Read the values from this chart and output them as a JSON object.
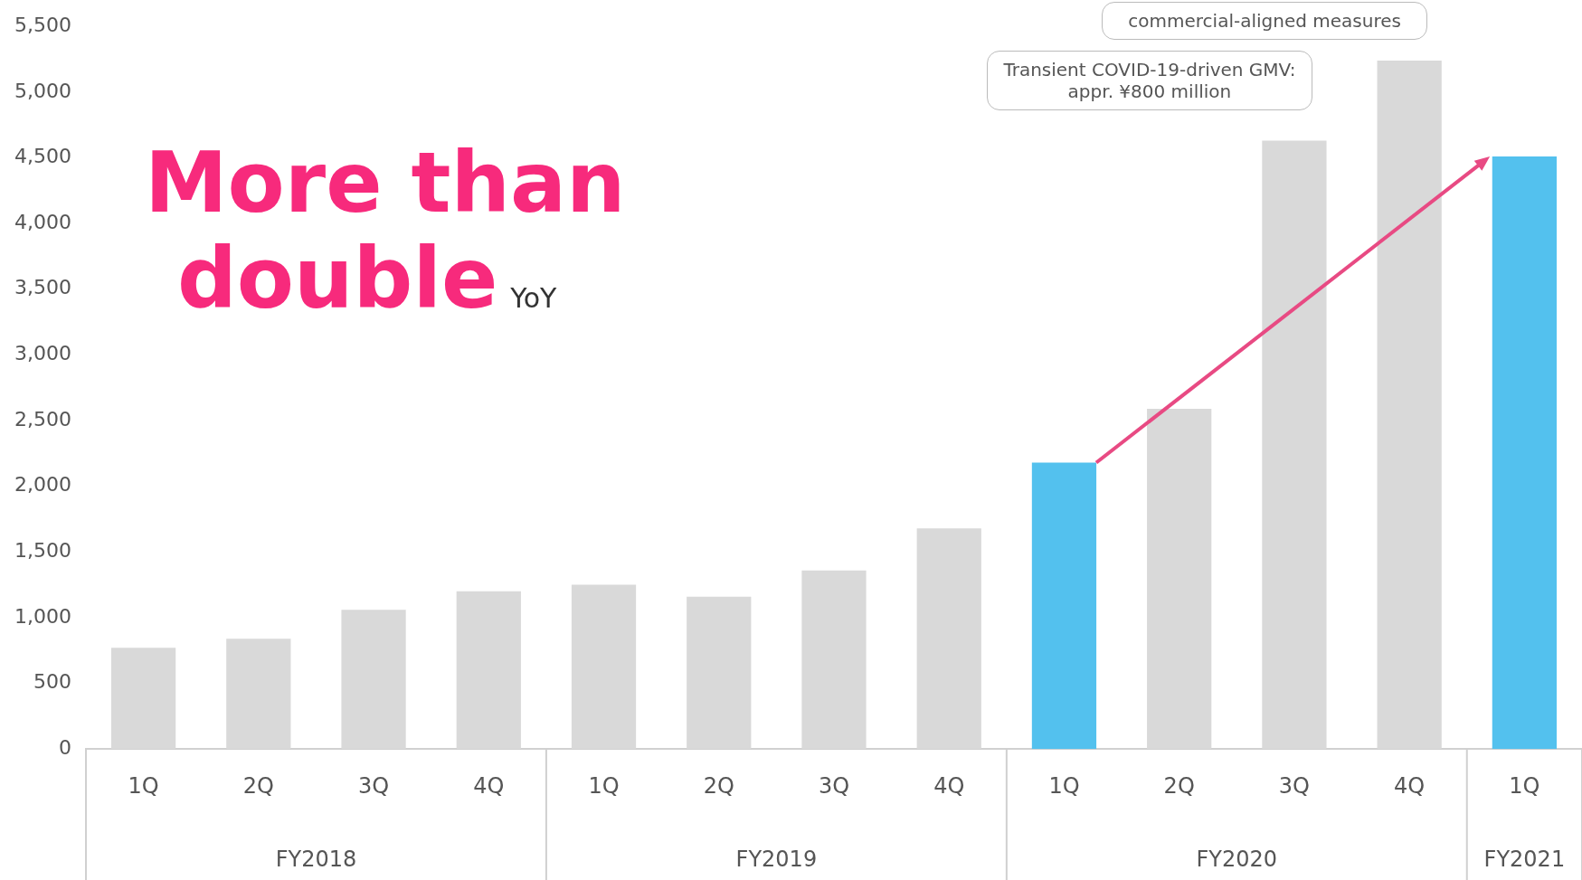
{
  "chart_data": {
    "type": "bar",
    "categories": [
      "1Q",
      "2Q",
      "3Q",
      "4Q",
      "1Q",
      "2Q",
      "3Q",
      "4Q",
      "1Q",
      "2Q",
      "3Q",
      "4Q",
      "1Q"
    ],
    "values": [
      770,
      840,
      1060,
      1200,
      1250,
      1160,
      1360,
      1680,
      2180,
      2590,
      4630,
      5240,
      4510
    ],
    "colors": [
      "#d9d9d9",
      "#d9d9d9",
      "#d9d9d9",
      "#d9d9d9",
      "#d9d9d9",
      "#d9d9d9",
      "#d9d9d9",
      "#d9d9d9",
      "#53c1ee",
      "#d9d9d9",
      "#d9d9d9",
      "#d9d9d9",
      "#53c1ee"
    ],
    "ylim": [
      0,
      5500
    ],
    "yticks": [
      0,
      500,
      {
        "value": 1000,
        "label": "1,000"
      },
      {
        "value": 1500,
        "label": "1,500"
      },
      {
        "value": 2000,
        "label": "2,000"
      },
      {
        "value": 2500,
        "label": "2,500"
      },
      {
        "value": 3000,
        "label": "3,000"
      },
      {
        "value": 3500,
        "label": "3,500"
      },
      {
        "value": 4000,
        "label": "4,000"
      },
      {
        "value": 4500,
        "label": "4,500"
      },
      {
        "value": 5000,
        "label": "5,000"
      },
      {
        "value": 5500,
        "label": "5,500"
      }
    ],
    "grid": false,
    "legend": false,
    "annotations": [
      "More than double",
      "YoY",
      "Transient COVID-19-driven GMV: appr. ¥800 million",
      "commercial-aligned measures",
      "FY2018",
      "FY2019",
      "FY2020",
      "FY2021"
    ]
  }
}
